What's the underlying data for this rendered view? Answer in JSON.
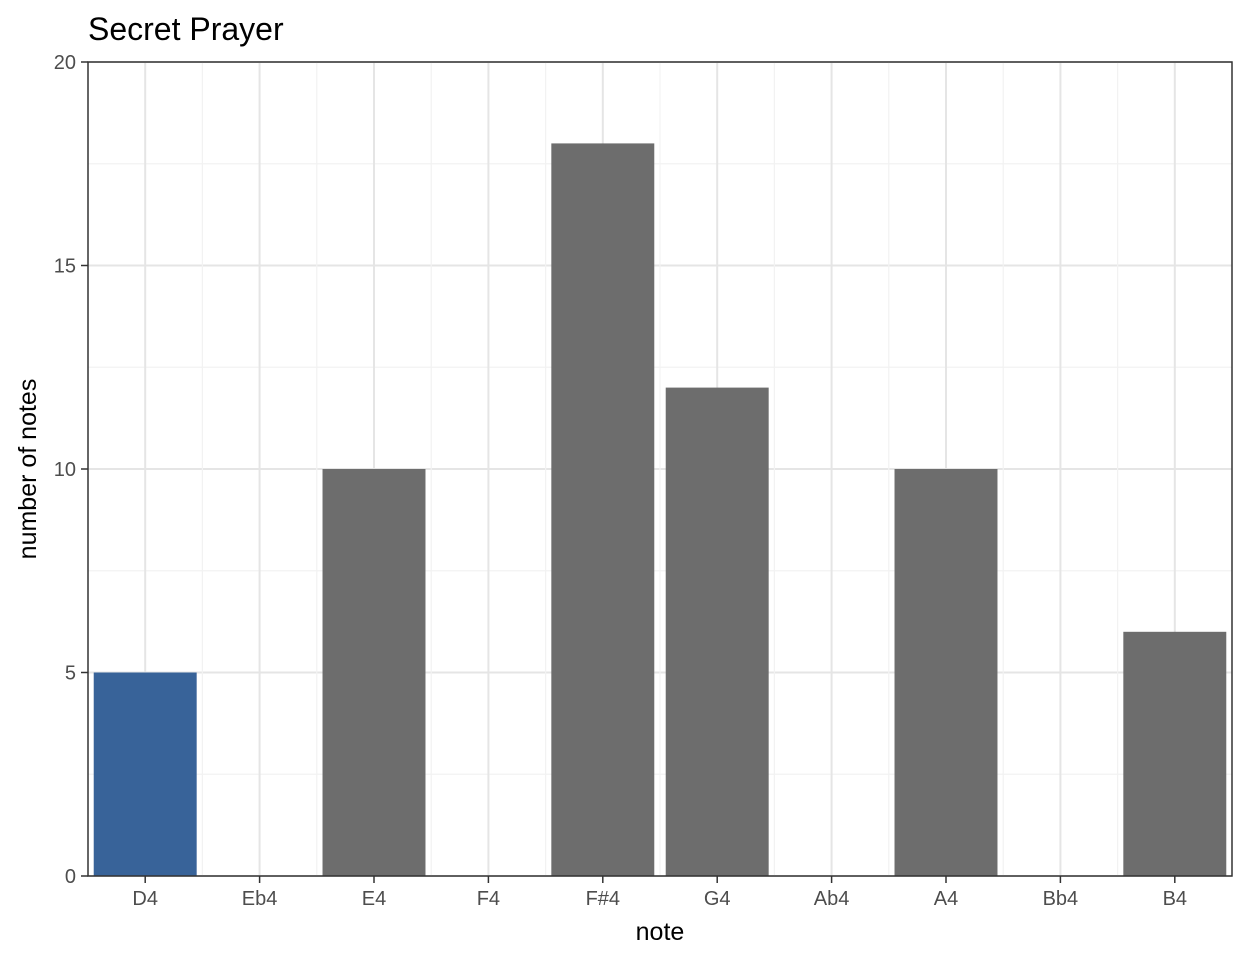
{
  "chart_data": {
    "type": "bar",
    "title": "Secret Prayer",
    "xlabel": "note",
    "ylabel": "number of notes",
    "categories": [
      "D4",
      "Eb4",
      "E4",
      "F4",
      "F#4",
      "G4",
      "Ab4",
      "A4",
      "Bb4",
      "B4"
    ],
    "values": [
      5,
      0,
      10,
      0,
      18,
      12,
      0,
      10,
      0,
      6
    ],
    "ylim": [
      0,
      20
    ],
    "yticks": [
      0,
      5,
      10,
      15,
      20
    ],
    "grid": true,
    "legend": "none",
    "highlight_category": "D4",
    "colors": {
      "bar": "#6d6d6d",
      "highlight": "#386399",
      "grid_major": "#e5e5e5",
      "grid_minor": "#f2f2f2",
      "panel_border": "#333333"
    }
  }
}
